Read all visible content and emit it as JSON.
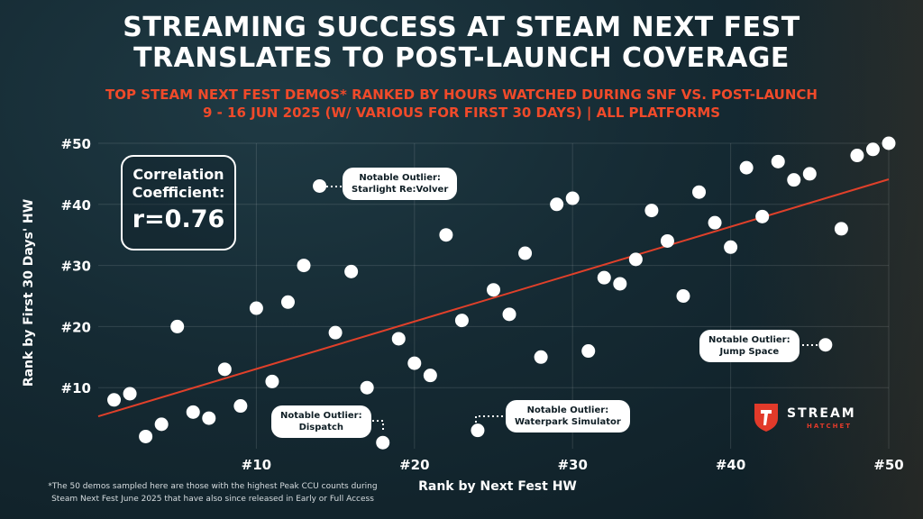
{
  "header": {
    "title_line1": "STREAMING SUCCESS AT STEAM NEXT FEST",
    "title_line2": "TRANSLATES TO POST-LAUNCH COVERAGE",
    "subtitle_line1": "TOP STEAM NEXT FEST DEMOS* RANKED BY HOURS WATCHED DURING SNF VS. POST-LAUNCH",
    "subtitle_line2": "9 - 16 JUN 2025 (W/ VARIOUS FOR FIRST 30 DAYS) | ALL PLATFORMS"
  },
  "correlation": {
    "label_line1": "Correlation",
    "label_line2": "Coefficient:",
    "value": "r=0.76"
  },
  "callouts": {
    "starlight": {
      "line1": "Notable Outlier:",
      "line2": "Starlight Re:Volver"
    },
    "jump_space": {
      "line1": "Notable Outlier:",
      "line2": "Jump Space"
    },
    "dispatch": {
      "line1": "Notable Outlier:",
      "line2": "Dispatch"
    },
    "waterpark": {
      "line1": "Notable Outlier:",
      "line2": "Waterpark Simulator"
    }
  },
  "footnote": {
    "line1": "*The 50 demos sampled here are those with the highest Peak CCU counts during",
    "line2": "Steam Next Fest June 2025 that have also since released in Early or Full Access"
  },
  "logo": {
    "word": "STREAM",
    "sub": "HATCHET"
  },
  "colors": {
    "accent": "#f04a2a",
    "trend": "#e0402a",
    "point": "#ffffff"
  },
  "chart_data": {
    "type": "scatter",
    "xlabel": "Rank by Next Fest HW",
    "ylabel": "Rank by First 30 Days' HW",
    "xlim": [
      0,
      50
    ],
    "ylim": [
      0,
      50
    ],
    "x_ticks": [
      10,
      20,
      30,
      40,
      50
    ],
    "x_tick_labels": [
      "#10",
      "#20",
      "#30",
      "#40",
      "#50"
    ],
    "y_ticks": [
      10,
      20,
      30,
      40,
      50
    ],
    "y_tick_labels": [
      "#10",
      "#20",
      "#30",
      "#40",
      "#50"
    ],
    "grid": true,
    "trendline": {
      "x": [
        0,
        50
      ],
      "y": [
        5.3,
        44.1
      ]
    },
    "points": [
      {
        "x": 1,
        "y": 8
      },
      {
        "x": 2,
        "y": 9
      },
      {
        "x": 3,
        "y": 2
      },
      {
        "x": 4,
        "y": 4
      },
      {
        "x": 5,
        "y": 20
      },
      {
        "x": 6,
        "y": 6
      },
      {
        "x": 7,
        "y": 5
      },
      {
        "x": 8,
        "y": 13
      },
      {
        "x": 9,
        "y": 7
      },
      {
        "x": 10,
        "y": 23
      },
      {
        "x": 11,
        "y": 11
      },
      {
        "x": 12,
        "y": 24
      },
      {
        "x": 13,
        "y": 30
      },
      {
        "x": 14,
        "y": 43
      },
      {
        "x": 15,
        "y": 19
      },
      {
        "x": 16,
        "y": 29
      },
      {
        "x": 17,
        "y": 10
      },
      {
        "x": 18,
        "y": 1
      },
      {
        "x": 19,
        "y": 18
      },
      {
        "x": 20,
        "y": 14
      },
      {
        "x": 21,
        "y": 12
      },
      {
        "x": 22,
        "y": 35
      },
      {
        "x": 23,
        "y": 21
      },
      {
        "x": 24,
        "y": 3
      },
      {
        "x": 25,
        "y": 26
      },
      {
        "x": 26,
        "y": 22
      },
      {
        "x": 27,
        "y": 32
      },
      {
        "x": 28,
        "y": 15
      },
      {
        "x": 29,
        "y": 40
      },
      {
        "x": 30,
        "y": 41
      },
      {
        "x": 31,
        "y": 16
      },
      {
        "x": 32,
        "y": 28
      },
      {
        "x": 33,
        "y": 27
      },
      {
        "x": 34,
        "y": 31
      },
      {
        "x": 35,
        "y": 39
      },
      {
        "x": 36,
        "y": 34
      },
      {
        "x": 37,
        "y": 25
      },
      {
        "x": 38,
        "y": 42
      },
      {
        "x": 39,
        "y": 37
      },
      {
        "x": 40,
        "y": 33
      },
      {
        "x": 41,
        "y": 46
      },
      {
        "x": 42,
        "y": 38
      },
      {
        "x": 43,
        "y": 47
      },
      {
        "x": 44,
        "y": 44
      },
      {
        "x": 45,
        "y": 45
      },
      {
        "x": 46,
        "y": 17
      },
      {
        "x": 47,
        "y": 36
      },
      {
        "x": 48,
        "y": 48
      },
      {
        "x": 49,
        "y": 49
      },
      {
        "x": 50,
        "y": 50
      }
    ]
  }
}
